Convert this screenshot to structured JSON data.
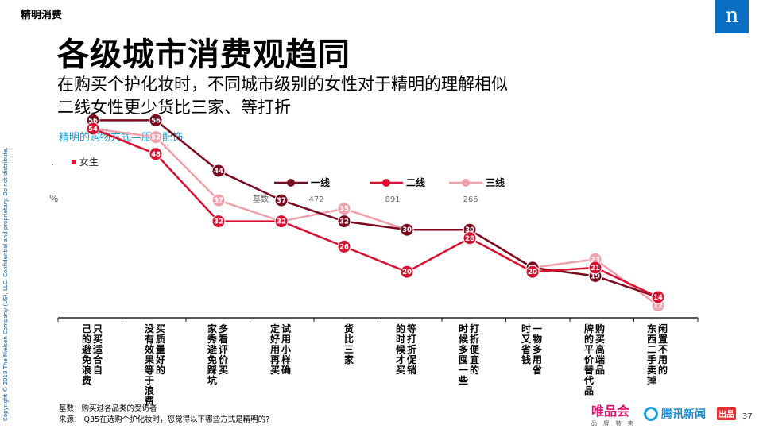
{
  "header": {
    "section": "精明消费",
    "title": "各级城市消费观趋同",
    "subtitle1": "在购买个护化妆时，不同城市级别的女性对于精明的理解相似",
    "subtitle2": "二线女性更少货比三家、等打折",
    "chart_caption": "精明的购物方式—服装配饰",
    "gender_label": "女生",
    "dot_mark": "."
  },
  "logo": {
    "glyph": "n",
    "color": "#0a6fc2"
  },
  "side_text": "Copyright © 2018 The Nielsen Company (US), LLC. Confidential and proprietary. Do not distribute.",
  "chart_data": {
    "type": "line",
    "unit_label": "%",
    "base_label": "基数",
    "categories": [
      "只买适合自己的避免浪费",
      "买质量好的没有效果等于浪费",
      "多看评价买家秀避免踩坑",
      "试用小样确定好用再买",
      "货比三家",
      "等打折促销的时候才买",
      "打折便宜的时候多囤一些",
      "一物多用省时又省钱",
      "购买高端品牌的平价替代品",
      "闲置不用的东西二手卖掉"
    ],
    "series": [
      {
        "name": "一线",
        "base": "472",
        "color": "#7a0a1e",
        "values": [
          56,
          56,
          44,
          37,
          32,
          30,
          30,
          21,
          19,
          14
        ],
        "labels": [
          "56",
          "56",
          "44",
          "37",
          "32",
          "30",
          "30",
          "21",
          "19",
          "14"
        ]
      },
      {
        "name": "二线",
        "base": "891",
        "color": "#d9112f",
        "values": [
          54,
          48,
          32,
          32,
          26,
          20,
          28,
          20,
          21,
          14
        ],
        "labels": [
          "54",
          "48",
          "32",
          "32",
          "26",
          "20",
          "28",
          "20",
          "21",
          "14"
        ]
      },
      {
        "name": "三线",
        "base": "266",
        "color": "#f0a0aa",
        "values": [
          54,
          52,
          37,
          32,
          35,
          30,
          30,
          21,
          23,
          12
        ],
        "labels": [
          "54",
          "52",
          "37",
          "32",
          "35",
          "30",
          "30",
          "21",
          "23",
          "12"
        ]
      }
    ],
    "ylim": [
      0,
      70
    ],
    "grid": false
  },
  "footer": {
    "base_note": "基数：购买过各品类的受访者",
    "source_note": "来源：  Q35在选购个护化妆时，您觉得以下哪些方式是精明的?"
  },
  "brands": {
    "vip": "唯品会",
    "vip_sub": "品 牌 特 卖",
    "tencent": "腾讯新闻",
    "tencent_badge": "出品"
  },
  "page_number": "37"
}
